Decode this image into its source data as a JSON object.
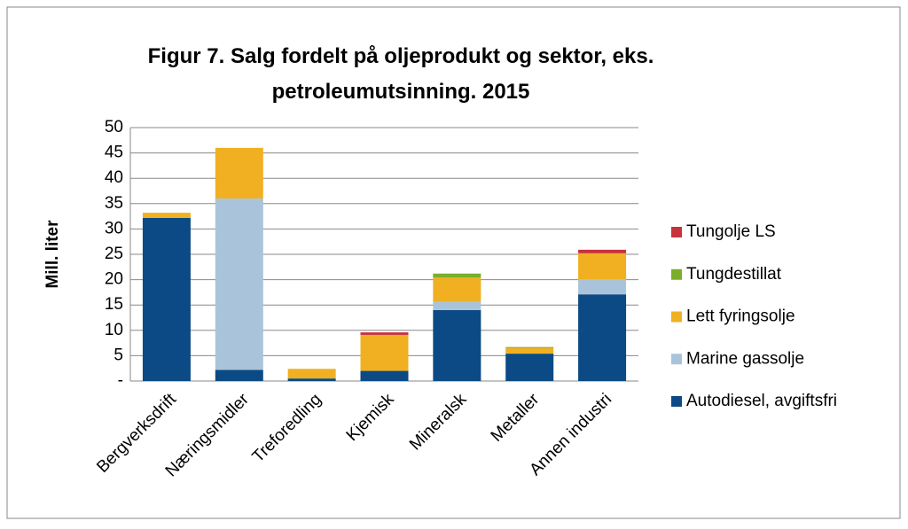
{
  "chart_data": {
    "type": "stacked_bar",
    "title": "Figur 7. Salg fordelt på oljeprodukt og sektor, eks. petroleumutsinning. 2015",
    "y_label": "Mill. liter",
    "categories": [
      "Bergverksdrift",
      "Næringsmidler",
      "Treforedling",
      "Kjemisk",
      "Mineralsk",
      "Metaller",
      "Annen industri"
    ],
    "series": [
      {
        "name": "Autodiesel, avgiftsfri",
        "color": "#0b4a84",
        "values": [
          32.2,
          2.2,
          0.5,
          2,
          14,
          5.4,
          17.1
        ]
      },
      {
        "name": "Marine gassolje",
        "color": "#a9c4da",
        "values": [
          0,
          33.8,
          0,
          0,
          1.6,
          0,
          3
        ]
      },
      {
        "name": "Lett fyringsolje",
        "color": "#f0b021",
        "values": [
          1,
          10,
          1.9,
          7.1,
          4.8,
          1.1,
          5.1
        ]
      },
      {
        "name": "Tungdestillat",
        "color": "#7bae29",
        "values": [
          0,
          0,
          0,
          0,
          0.8,
          0.2,
          0
        ]
      },
      {
        "name": "Tungolje LS",
        "color": "#c8323b",
        "values": [
          0,
          0,
          0,
          0.5,
          0,
          0,
          0.7
        ]
      }
    ],
    "ylim": [
      0,
      50
    ],
    "yticks": [
      {
        "value": 0,
        "label": "-"
      },
      5,
      10,
      15,
      20,
      25,
      30,
      35,
      40,
      45,
      50
    ],
    "grid": true
  }
}
